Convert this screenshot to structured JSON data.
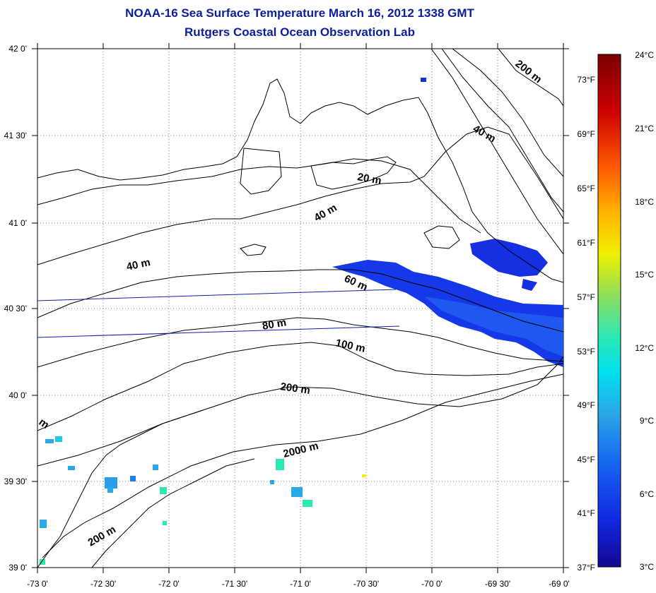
{
  "header": {
    "title": "NOAA-16 Sea Surface Temperature March 16, 2012 1338 GMT",
    "subtitle": "Rutgers Coastal Ocean Observation Lab"
  },
  "map": {
    "lat_labels": [
      "42 0'",
      "41 30'",
      "41 0'",
      "40 30'",
      "40 0'",
      "39 30'",
      "39 0'"
    ],
    "lon_labels": [
      "-73 0'",
      "-72 30'",
      "-72 0'",
      "-71 30'",
      "-71 0'",
      "-70 30'",
      "-70 0'",
      "-69 30'",
      "-69 0'"
    ],
    "contour_labels": [
      "200 m",
      "40 m",
      "20 m",
      "40 m",
      "40 m",
      "60 m",
      "80 m",
      "100 m",
      "200 m",
      "2000 m",
      "200 m",
      "m"
    ]
  },
  "colorbar": {
    "celsius_labels": [
      "24°C",
      "21°C",
      "18°C",
      "15°C",
      "12°C",
      "9°C",
      "6°C",
      "3°C"
    ],
    "fahrenheit_labels": [
      "73°F",
      "69°F",
      "65°F",
      "61°F",
      "57°F",
      "53°F",
      "49°F",
      "45°F",
      "41°F",
      "37°F"
    ],
    "colors": [
      "#7a0000",
      "#cc0000",
      "#ff5a00",
      "#ffb400",
      "#f0f000",
      "#8ce05a",
      "#2ee8b4",
      "#00e0f0",
      "#2aa8e8",
      "#1464f0",
      "#1028e0",
      "#100890"
    ]
  }
}
